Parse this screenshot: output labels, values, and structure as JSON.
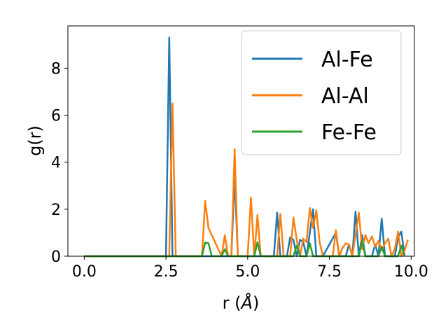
{
  "chart_data": {
    "type": "line",
    "title": "",
    "xlabel": "r (",
    "xlabel_unit": "Å",
    "xlabel_close": ")",
    "ylabel": "g(r)",
    "xlim": [
      -0.5,
      10.1
    ],
    "ylim": [
      0,
      9.8
    ],
    "xticks": [
      0.0,
      2.5,
      5.0,
      7.5,
      10.0
    ],
    "xtick_labels": [
      "0.0",
      "2.5",
      "5.0",
      "7.5",
      "10.0"
    ],
    "yticks": [
      0,
      2,
      4,
      6,
      8
    ],
    "ytick_labels": [
      "0",
      "2",
      "4",
      "6",
      "8"
    ],
    "grid": false,
    "legend_position": "top-right",
    "series": [
      {
        "name": "Al-Fe",
        "color": "#1f77b4",
        "x": [
          0.0,
          2.5,
          2.6,
          2.7,
          4.5,
          4.6,
          4.7,
          5.8,
          5.9,
          6.0,
          6.2,
          6.3,
          6.4,
          6.5,
          6.6,
          6.7,
          6.8,
          6.9,
          7.0,
          7.1,
          7.3,
          7.7,
          7.8,
          8.0,
          8.1,
          8.2,
          8.3,
          8.4,
          8.5,
          8.6,
          8.8,
          8.9,
          9.0,
          9.1,
          9.2,
          9.5,
          9.6,
          9.7,
          9.8
        ],
        "values": [
          0,
          0,
          9.3,
          0,
          0,
          3.4,
          0,
          0,
          1.85,
          0,
          0,
          0.8,
          0.7,
          0,
          0.7,
          0.6,
          0,
          1.0,
          2.0,
          0,
          0,
          1.0,
          0,
          0,
          0.5,
          0,
          1.9,
          0,
          0.9,
          0,
          0,
          0.5,
          0,
          1.6,
          0,
          0,
          0.8,
          1.05,
          0
        ]
      },
      {
        "name": "Al-Al",
        "color": "#ff7f0e",
        "x": [
          0.0,
          2.6,
          2.7,
          2.8,
          3.6,
          3.7,
          3.8,
          4.2,
          4.3,
          4.4,
          4.5,
          4.6,
          4.7,
          5.0,
          5.1,
          5.2,
          5.3,
          5.4,
          5.9,
          6.0,
          6.1,
          6.3,
          6.4,
          6.5,
          6.6,
          6.7,
          6.8,
          6.9,
          7.0,
          7.1,
          7.2,
          7.3,
          7.6,
          7.7,
          7.8,
          7.9,
          8.0,
          8.1,
          8.2,
          8.3,
          8.4,
          8.5,
          8.6,
          8.7,
          8.8,
          8.9,
          9.0,
          9.1,
          9.2,
          9.3,
          9.4,
          9.5,
          9.6,
          9.7,
          9.8,
          9.9
        ],
        "values": [
          0,
          0,
          6.5,
          0,
          0,
          2.35,
          1.2,
          0,
          0.9,
          0,
          0,
          4.55,
          0,
          0,
          2.5,
          0,
          1.75,
          0,
          0,
          1.8,
          0,
          0,
          1.65,
          0.7,
          0,
          0.75,
          0.6,
          2.05,
          1.2,
          1.95,
          0.6,
          0,
          0,
          1.1,
          0,
          0.35,
          0.55,
          0.5,
          0,
          0.9,
          1.85,
          0.3,
          0.9,
          0.55,
          0.85,
          0.4,
          0.65,
          0.25,
          0.55,
          0.75,
          0,
          0.3,
          1.05,
          0,
          0.25,
          0.7
        ]
      },
      {
        "name": "Fe-Fe",
        "color": "#2ca02c",
        "x": [
          0.0,
          3.6,
          3.7,
          3.8,
          3.9,
          4.2,
          4.3,
          4.4,
          5.2,
          5.3,
          5.4,
          6.4,
          6.5,
          6.6,
          6.8,
          6.9,
          7.0,
          8.4,
          8.5,
          8.6,
          9.0,
          9.1,
          9.2,
          9.6,
          9.7,
          9.8
        ],
        "values": [
          0,
          0,
          0.58,
          0.55,
          0,
          0,
          0.3,
          0,
          0,
          0.6,
          0,
          0,
          0.45,
          0,
          0,
          0.55,
          0,
          0,
          0.65,
          0,
          0,
          0.4,
          0,
          0,
          0.45,
          0
        ]
      }
    ]
  }
}
